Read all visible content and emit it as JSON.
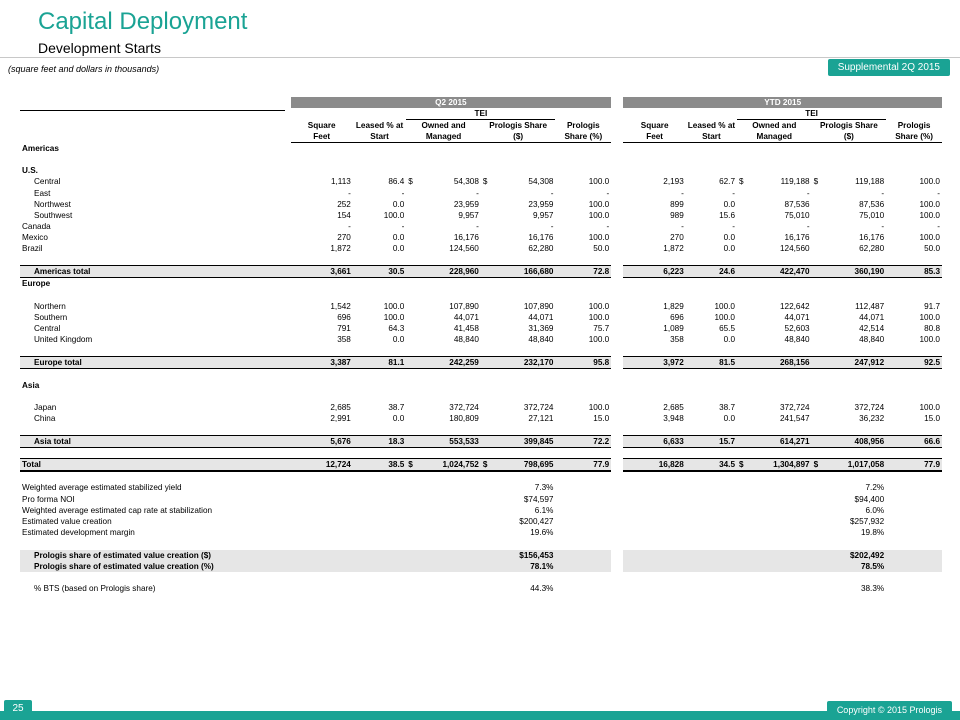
{
  "header": {
    "title": "Capital Deployment",
    "subtitle": "Development Starts",
    "units_note": "(square feet and dollars in thousands)",
    "tag": "Supplemental 2Q 2015"
  },
  "footer": {
    "page_number": "25",
    "copyright": "Copyright © 2015 Prologis"
  },
  "colors": {
    "accent": "#1aa394",
    "band": "#8b8b8b",
    "shade": "#e6e6e6"
  },
  "table": {
    "periods": [
      "Q2 2015",
      "YTD 2015"
    ],
    "tei_label": "TEI",
    "col_hdr1": [
      "Square",
      "Leased % at",
      "Owned and",
      "Prologis Share",
      "Prologis"
    ],
    "col_hdr2": [
      "Feet",
      "Start",
      "Managed",
      "($)",
      "Share (%)"
    ],
    "rows": [
      {
        "t": "sec",
        "label": "Americas"
      },
      {
        "t": "sp"
      },
      {
        "t": "sec",
        "label": "U.S."
      },
      {
        "t": "ind",
        "label": "Central",
        "v": [
          "1,113",
          "86.4",
          "$",
          "54,308",
          "$",
          "54,308",
          "100.0",
          "2,193",
          "62.7",
          "$",
          "119,188",
          "$",
          "119,188",
          "100.0"
        ]
      },
      {
        "t": "ind",
        "label": "East",
        "v": [
          "-",
          "-",
          "",
          "-",
          "",
          "-",
          "-",
          "-",
          "-",
          "",
          "-",
          "",
          "-",
          "-"
        ]
      },
      {
        "t": "ind",
        "label": "Northwest",
        "v": [
          "252",
          "0.0",
          "",
          "23,959",
          "",
          "23,959",
          "100.0",
          "899",
          "0.0",
          "",
          "87,536",
          "",
          "87,536",
          "100.0"
        ]
      },
      {
        "t": "ind",
        "label": "Southwest",
        "v": [
          "154",
          "100.0",
          "",
          "9,957",
          "",
          "9,957",
          "100.0",
          "989",
          "15.6",
          "",
          "75,010",
          "",
          "75,010",
          "100.0"
        ]
      },
      {
        "t": "row",
        "label": "Canada",
        "v": [
          "-",
          "-",
          "",
          "-",
          "",
          "-",
          "-",
          "-",
          "-",
          "",
          "-",
          "",
          "-",
          "-"
        ]
      },
      {
        "t": "row",
        "label": "Mexico",
        "v": [
          "270",
          "0.0",
          "",
          "16,176",
          "",
          "16,176",
          "100.0",
          "270",
          "0.0",
          "",
          "16,176",
          "",
          "16,176",
          "100.0"
        ]
      },
      {
        "t": "row",
        "label": "Brazil",
        "v": [
          "1,872",
          "0.0",
          "",
          "124,560",
          "",
          "62,280",
          "50.0",
          "1,872",
          "0.0",
          "",
          "124,560",
          "",
          "62,280",
          "50.0"
        ]
      },
      {
        "t": "sp"
      },
      {
        "t": "tot",
        "label": "Americas total",
        "v": [
          "3,661",
          "30.5",
          "",
          "228,960",
          "",
          "166,680",
          "72.8",
          "6,223",
          "24.6",
          "",
          "422,470",
          "",
          "360,190",
          "85.3"
        ]
      },
      {
        "t": "sec",
        "label": "Europe"
      },
      {
        "t": "sp"
      },
      {
        "t": "ind",
        "label": "Northern",
        "v": [
          "1,542",
          "100.0",
          "",
          "107,890",
          "",
          "107,890",
          "100.0",
          "1,829",
          "100.0",
          "",
          "122,642",
          "",
          "112,487",
          "91.7"
        ]
      },
      {
        "t": "ind",
        "label": "Southern",
        "v": [
          "696",
          "100.0",
          "",
          "44,071",
          "",
          "44,071",
          "100.0",
          "696",
          "100.0",
          "",
          "44,071",
          "",
          "44,071",
          "100.0"
        ]
      },
      {
        "t": "ind",
        "label": "Central",
        "v": [
          "791",
          "64.3",
          "",
          "41,458",
          "",
          "31,369",
          "75.7",
          "1,089",
          "65.5",
          "",
          "52,603",
          "",
          "42,514",
          "80.8"
        ]
      },
      {
        "t": "ind",
        "label": "United Kingdom",
        "v": [
          "358",
          "0.0",
          "",
          "48,840",
          "",
          "48,840",
          "100.0",
          "358",
          "0.0",
          "",
          "48,840",
          "",
          "48,840",
          "100.0"
        ]
      },
      {
        "t": "sp"
      },
      {
        "t": "tot",
        "label": "Europe total",
        "v": [
          "3,387",
          "81.1",
          "",
          "242,259",
          "",
          "232,170",
          "95.8",
          "3,972",
          "81.5",
          "",
          "268,156",
          "",
          "247,912",
          "92.5"
        ]
      },
      {
        "t": "sp"
      },
      {
        "t": "sec",
        "label": "Asia"
      },
      {
        "t": "sp"
      },
      {
        "t": "ind",
        "label": "Japan",
        "v": [
          "2,685",
          "38.7",
          "",
          "372,724",
          "",
          "372,724",
          "100.0",
          "2,685",
          "38.7",
          "",
          "372,724",
          "",
          "372,724",
          "100.0"
        ]
      },
      {
        "t": "ind",
        "label": "China",
        "v": [
          "2,991",
          "0.0",
          "",
          "180,809",
          "",
          "27,121",
          "15.0",
          "3,948",
          "0.0",
          "",
          "241,547",
          "",
          "36,232",
          "15.0"
        ]
      },
      {
        "t": "sp"
      },
      {
        "t": "tot",
        "label": "Asia total",
        "v": [
          "5,676",
          "18.3",
          "",
          "553,533",
          "",
          "399,845",
          "72.2",
          "6,633",
          "15.7",
          "",
          "614,271",
          "",
          "408,956",
          "66.6"
        ]
      },
      {
        "t": "sp"
      },
      {
        "t": "gtot",
        "label": "Total",
        "v": [
          "12,724",
          "38.5",
          "$",
          "1,024,752",
          "$",
          "798,695",
          "77.9",
          "16,828",
          "34.5",
          "$",
          "1,304,897",
          "$",
          "1,017,058",
          "77.9"
        ]
      },
      {
        "t": "sp2"
      },
      {
        "t": "stat",
        "label": "Weighted average estimated stabilized yield",
        "q": "7.3%",
        "y": "7.2%"
      },
      {
        "t": "stat",
        "label": "Pro forma NOI",
        "q": "$74,597",
        "y": "$94,400"
      },
      {
        "t": "stat",
        "label": "Weighted average estimated cap rate at stabilization",
        "q": "6.1%",
        "y": "6.0%"
      },
      {
        "t": "stat",
        "label": "Estimated value creation",
        "q": "$200,427",
        "y": "$257,932"
      },
      {
        "t": "stat",
        "label": "Estimated development margin",
        "q": "19.6%",
        "y": "19.8%"
      },
      {
        "t": "sp"
      },
      {
        "t": "shade",
        "label": "Prologis share of estimated value creation ($)",
        "q": "$156,453",
        "y": "$202,492"
      },
      {
        "t": "shade",
        "label": "Prologis share of estimated value creation (%)",
        "q": "78.1%",
        "y": "78.5%"
      },
      {
        "t": "sp"
      },
      {
        "t": "statind",
        "label": "% BTS (based on Prologis share)",
        "q": "44.3%",
        "y": "38.3%"
      }
    ]
  }
}
